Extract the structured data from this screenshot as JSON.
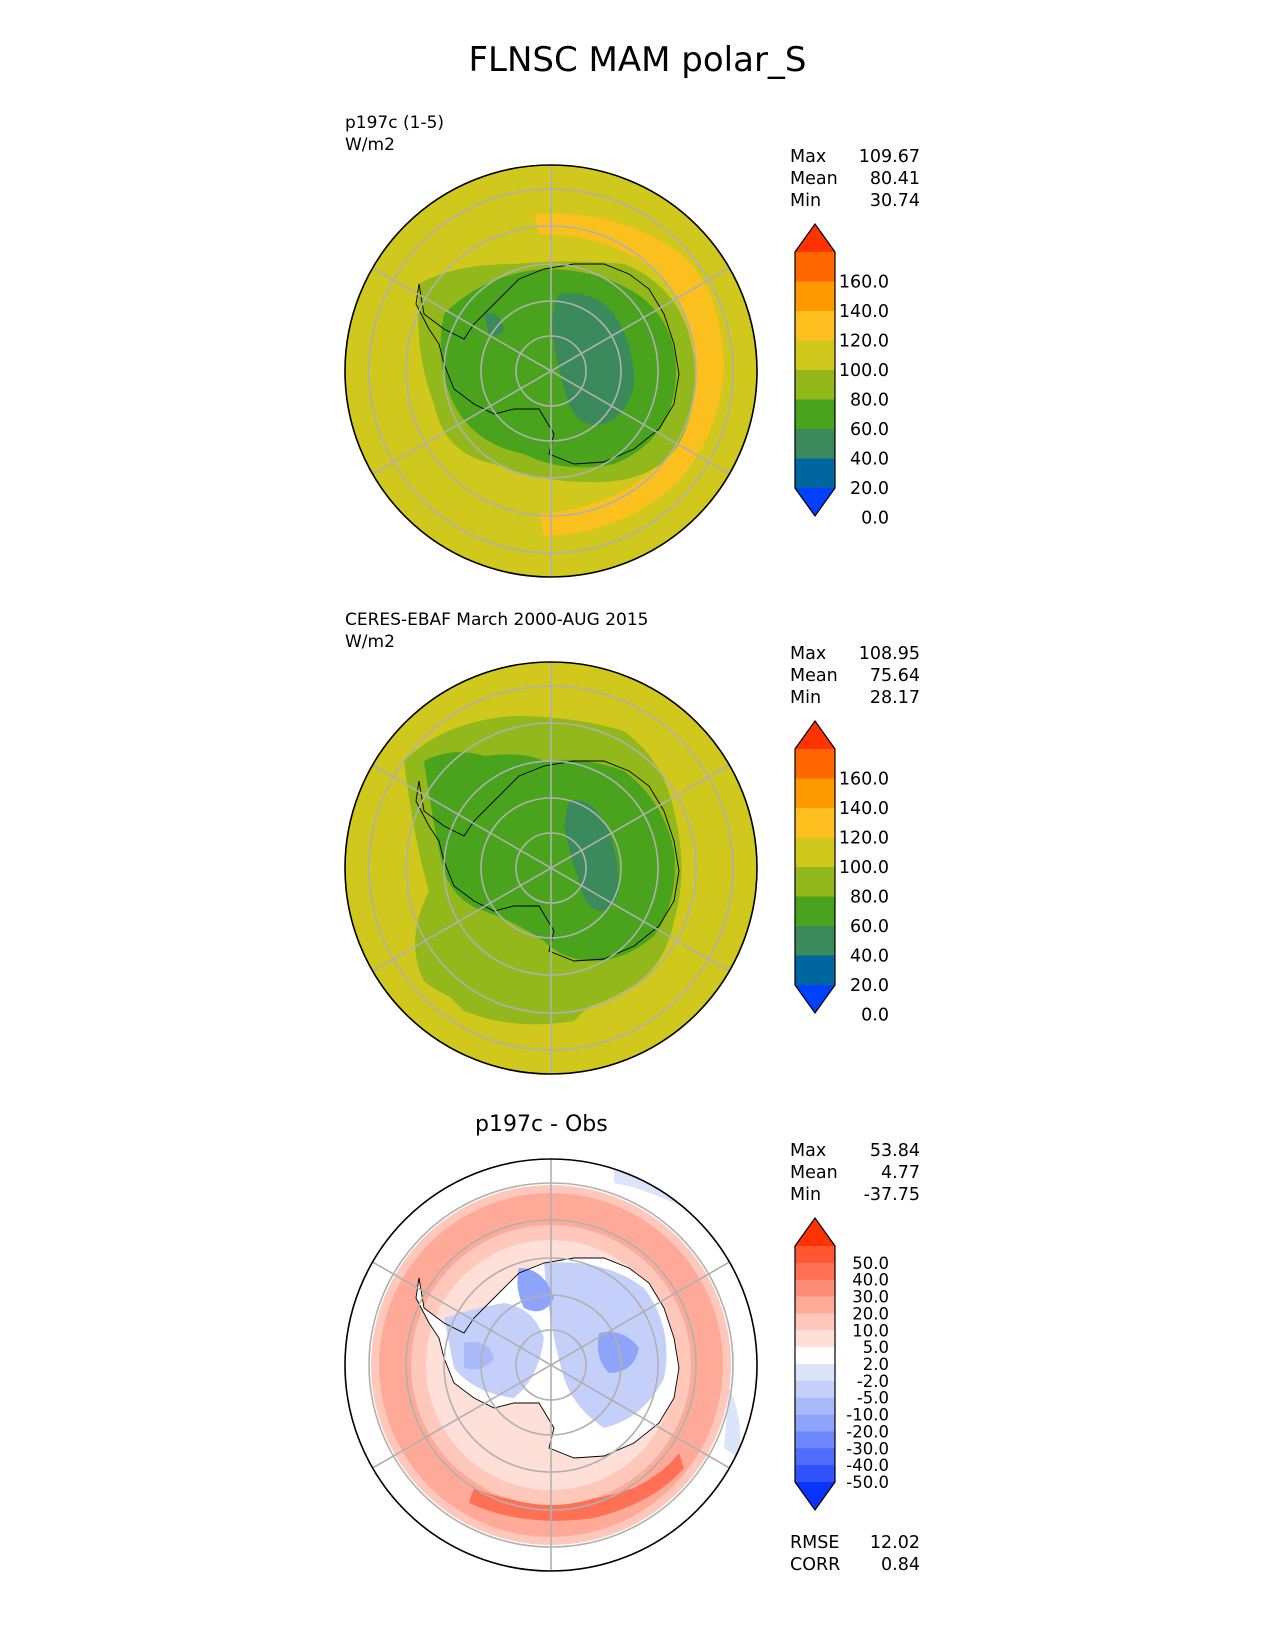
{
  "figure": {
    "title": "FLNSC MAM polar_S"
  },
  "panels": [
    {
      "name": "test",
      "label_line1": "p197c (1-5)",
      "label_line2": "W/m2",
      "stats": [
        {
          "key": "Max",
          "value": "109.67"
        },
        {
          "key": "Mean",
          "value": "80.41"
        },
        {
          "key": "Min",
          "value": "30.74"
        }
      ],
      "colorbar": {
        "ticks": [
          "160.0",
          "140.0",
          "120.0",
          "100.0",
          "80.0",
          "60.0",
          "40.0",
          "20.0",
          "0.0"
        ],
        "colors": [
          "#ff3300",
          "#ff6600",
          "#ff9900",
          "#ffbf1f",
          "#d0c81c",
          "#92b81c",
          "#4aa31c",
          "#3a8a5c",
          "#0066a0",
          "#0040ff"
        ]
      },
      "background_color": "#d0c81c"
    },
    {
      "name": "reference",
      "label_line1": "CERES-EBAF March 2000-AUG 2015",
      "label_line2": "W/m2",
      "stats": [
        {
          "key": "Max",
          "value": "108.95"
        },
        {
          "key": "Mean",
          "value": "75.64"
        },
        {
          "key": "Min",
          "value": "28.17"
        }
      ],
      "colorbar": {
        "ticks": [
          "160.0",
          "140.0",
          "120.0",
          "100.0",
          "80.0",
          "60.0",
          "40.0",
          "20.0",
          "0.0"
        ],
        "colors": [
          "#ff3300",
          "#ff6600",
          "#ff9900",
          "#ffbf1f",
          "#d0c81c",
          "#92b81c",
          "#4aa31c",
          "#3a8a5c",
          "#0066a0",
          "#0040ff"
        ]
      },
      "background_color": "#d0c81c"
    },
    {
      "name": "difference",
      "title": "p197c - Obs",
      "stats": [
        {
          "key": "Max",
          "value": "53.84"
        },
        {
          "key": "Mean",
          "value": "4.77"
        },
        {
          "key": "Min",
          "value": "-37.75"
        }
      ],
      "metrics": [
        {
          "key": "RMSE",
          "value": "12.02"
        },
        {
          "key": "CORR",
          "value": "0.84"
        }
      ],
      "colorbar": {
        "ticks": [
          "50.0",
          "40.0",
          "30.0",
          "20.0",
          "10.0",
          "5.0",
          "2.0",
          "-2.0",
          "-5.0",
          "-10.0",
          "-20.0",
          "-30.0",
          "-40.0",
          "-50.0"
        ],
        "colors": [
          "#ff3300",
          "#ff5533",
          "#ff7055",
          "#ff8c78",
          "#ffaa99",
          "#ffc8bb",
          "#ffe0d8",
          "#ffffff",
          "#dce4fa",
          "#c4d0fa",
          "#a9b9fa",
          "#8ea3fa",
          "#6d88fa",
          "#4f6dfa",
          "#2e52fc",
          "#0a33ff"
        ]
      }
    }
  ]
}
